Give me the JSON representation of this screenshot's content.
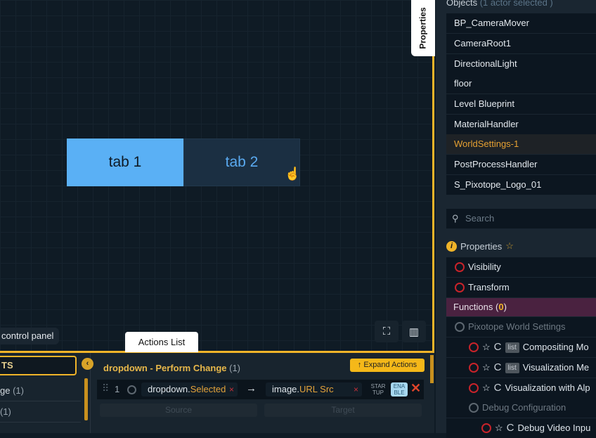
{
  "canvas": {
    "tab1": "tab 1",
    "tab2": "tab 2",
    "control_panel": "control panel",
    "tools": [
      "focus-icon",
      "map-icon"
    ]
  },
  "properties_tab": "Properties",
  "objects": {
    "header": "Objects",
    "selected_note": "(1 actor selected )",
    "items": [
      "BP_CameraMover",
      "CameraRoot1",
      "DirectionalLight",
      "floor",
      "Level Blueprint",
      "MaterialHandler",
      "WorldSettings-1",
      "PostProcessHandler",
      "S_Pixotope_Logo_01"
    ],
    "selected": "WorldSettings-1"
  },
  "search": {
    "placeholder": "Search"
  },
  "properties": {
    "title": "Properties",
    "rows": [
      "Visibility",
      "Transform"
    ]
  },
  "functions": {
    "label": "Functions",
    "count": "0",
    "group": "Pixotope World Settings",
    "items": [
      {
        "c": "C",
        "tag": "list",
        "label": "Compositing Mo"
      },
      {
        "c": "C",
        "tag": "list",
        "label": "Visualization Me"
      },
      {
        "c": "C",
        "tag": "",
        "label": "Visualization with Alp"
      }
    ],
    "debug_group": "Debug Configuration",
    "debug_item": {
      "c": "C",
      "label": "Debug Video Inpu"
    }
  },
  "bottom": {
    "actions_tab": "Actions List",
    "left_header": "TS",
    "left_items": [
      {
        "label": "ge",
        "count": "(1)"
      },
      {
        "label": "",
        "count": "(1)"
      }
    ],
    "title": "dropdown - Perform Change",
    "title_count": "(1)",
    "expand": "↑ Expand Actions",
    "row": {
      "index": "1",
      "source_obj": "dropdown.",
      "source_prop": "Selected",
      "target_obj": "image.",
      "target_prop": "URL Src",
      "startup": "STAR TUP",
      "enable": "ENA BLE"
    },
    "source_label": "Source",
    "target_label": "Target"
  },
  "colors": {
    "accent": "#f0b429",
    "tab_active": "#5ab0f5",
    "selected": "#e5a032",
    "functions_bg": "#4a2240"
  }
}
